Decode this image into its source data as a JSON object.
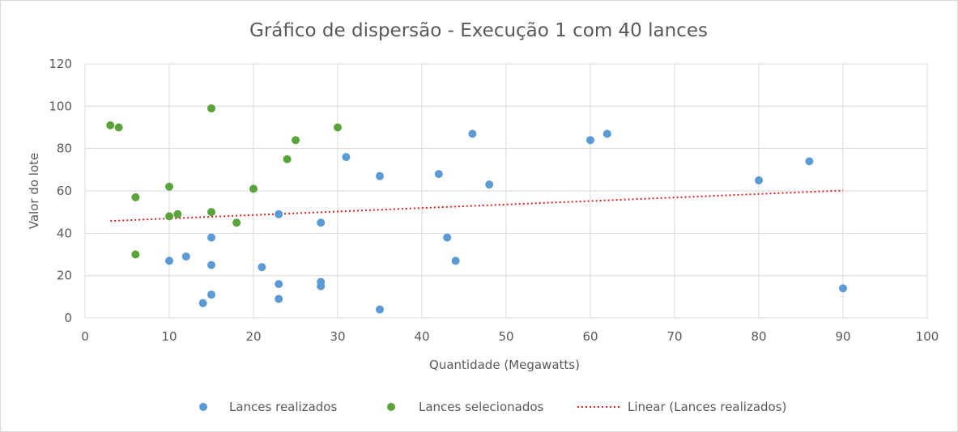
{
  "chart_data": {
    "type": "scatter",
    "title": "Gráfico de dispersão - Execução 1 com 40 lances",
    "xlabel": "Quantidade (Megawatts)",
    "ylabel": "Valor do lote",
    "xlim": [
      0,
      100
    ],
    "ylim": [
      0,
      120
    ],
    "xticks": [
      0,
      10,
      20,
      30,
      40,
      50,
      60,
      70,
      80,
      90,
      100
    ],
    "yticks": [
      0,
      20,
      40,
      60,
      80,
      100,
      120
    ],
    "grid": true,
    "legend_position": "bottom",
    "series": [
      {
        "name": "Lances realizados",
        "color": "#5b9bd5",
        "points": [
          [
            10,
            27
          ],
          [
            12,
            29
          ],
          [
            14,
            7
          ],
          [
            15,
            38
          ],
          [
            15,
            25
          ],
          [
            15,
            11
          ],
          [
            21,
            24
          ],
          [
            23,
            49
          ],
          [
            23,
            16
          ],
          [
            23,
            9
          ],
          [
            28,
            45
          ],
          [
            28,
            17
          ],
          [
            28,
            15
          ],
          [
            31,
            76
          ],
          [
            35,
            67
          ],
          [
            35,
            4
          ],
          [
            42,
            68
          ],
          [
            43,
            38
          ],
          [
            44,
            27
          ],
          [
            46,
            87
          ],
          [
            48,
            63
          ],
          [
            60,
            84
          ],
          [
            62,
            87
          ],
          [
            80,
            65
          ],
          [
            86,
            74
          ],
          [
            90,
            14
          ]
        ]
      },
      {
        "name": "Lances selecionados",
        "color": "#5aa33a",
        "points": [
          [
            3,
            91
          ],
          [
            4,
            90
          ],
          [
            6,
            57
          ],
          [
            6,
            30
          ],
          [
            10,
            62
          ],
          [
            10,
            48
          ],
          [
            11,
            49
          ],
          [
            15,
            99
          ],
          [
            15,
            50
          ],
          [
            18,
            45
          ],
          [
            20,
            61
          ],
          [
            24,
            75
          ],
          [
            25,
            84
          ],
          [
            30,
            90
          ]
        ]
      },
      {
        "name": "Linear (Lances realizados)",
        "color": "#e02020",
        "style": "dotted-line",
        "points": [
          [
            3,
            45.8
          ],
          [
            90,
            60.2
          ]
        ]
      }
    ]
  }
}
